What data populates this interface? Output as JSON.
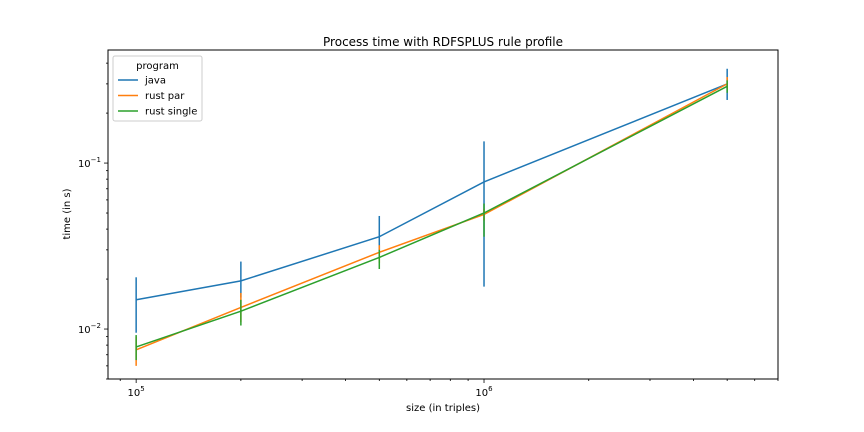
{
  "chart_data": {
    "type": "line",
    "title": "Process time with RDFSPLUS rule profile",
    "xlabel": "size (in triples)",
    "ylabel": "time (in s)",
    "x_scale": "log",
    "y_scale": "log",
    "xlim": [
      83000,
      7000000
    ],
    "ylim": [
      0.005,
      0.48
    ],
    "grid": false,
    "x_ticks": [
      {
        "value": 100000,
        "base": "10",
        "exp": "5"
      },
      {
        "value": 1000000,
        "base": "10",
        "exp": "6"
      }
    ],
    "y_ticks": [
      {
        "value": 0.01,
        "base": "10",
        "exp": "−2"
      },
      {
        "value": 0.1,
        "base": "10",
        "exp": "−1"
      }
    ],
    "legend": {
      "title": "program",
      "placement": "top-left"
    },
    "x": [
      100000,
      200000,
      500000,
      1000000,
      5000000
    ],
    "series": [
      {
        "name": "java",
        "color": "#1f77b4",
        "values": [
          0.015,
          0.0195,
          0.036,
          0.077,
          0.3
        ],
        "err_low": [
          0.0095,
          0.0155,
          0.029,
          0.018,
          0.24
        ],
        "err_high": [
          0.0205,
          0.0255,
          0.048,
          0.135,
          0.37
        ]
      },
      {
        "name": "rust par",
        "color": "#ff7f0e",
        "values": [
          0.0075,
          0.0135,
          0.029,
          0.049,
          0.3
        ],
        "err_low": [
          0.006,
          0.011,
          0.025,
          0.045,
          0.275
        ],
        "err_high": [
          0.009,
          0.0165,
          0.032,
          0.053,
          0.33
        ]
      },
      {
        "name": "rust single",
        "color": "#2ca02c",
        "values": [
          0.0078,
          0.0128,
          0.027,
          0.05,
          0.29
        ],
        "err_low": [
          0.0065,
          0.0105,
          0.023,
          0.036,
          0.265
        ],
        "err_high": [
          0.0092,
          0.015,
          0.03,
          0.057,
          0.315
        ]
      }
    ]
  }
}
